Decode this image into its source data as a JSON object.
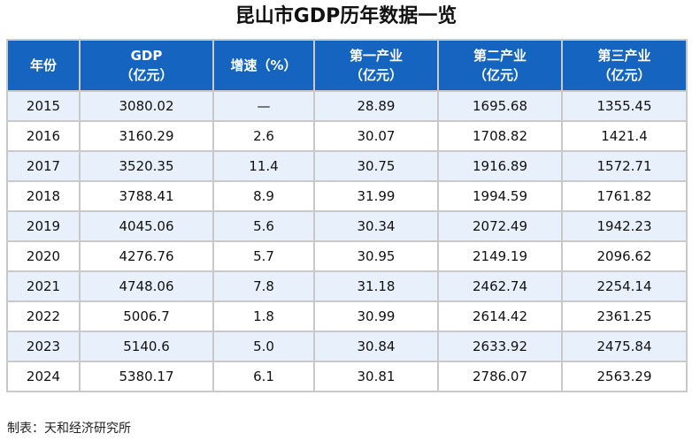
{
  "title": "昆山市GDP历年数据一览",
  "headers": [
    {
      "l1": "年份",
      "l2": ""
    },
    {
      "l1": "GDP",
      "l2": "（亿元）"
    },
    {
      "l1": "增速（%）",
      "l2": ""
    },
    {
      "l1": "第一产业",
      "l2": "（亿元）"
    },
    {
      "l1": "第二产业",
      "l2": "（亿元）"
    },
    {
      "l1": "第三产业",
      "l2": "（亿元）"
    }
  ],
  "rows": [
    [
      "2015",
      "3080.02",
      "—",
      "28.89",
      "1695.68",
      "1355.45"
    ],
    [
      "2016",
      "3160.29",
      "2.6",
      "30.07",
      "1708.82",
      "1421.4"
    ],
    [
      "2017",
      "3520.35",
      "11.4",
      "30.75",
      "1916.89",
      "1572.71"
    ],
    [
      "2018",
      "3788.41",
      "8.9",
      "31.99",
      "1994.59",
      "1761.82"
    ],
    [
      "2019",
      "4045.06",
      "5.6",
      "30.34",
      "2072.49",
      "1942.23"
    ],
    [
      "2020",
      "4276.76",
      "5.7",
      "30.95",
      "2149.19",
      "2096.62"
    ],
    [
      "2021",
      "4748.06",
      "7.8",
      "31.18",
      "2462.74",
      "2254.14"
    ],
    [
      "2022",
      "5006.7",
      "1.8",
      "30.99",
      "2614.42",
      "2361.25"
    ],
    [
      "2023",
      "5140.6",
      "5.0",
      "30.84",
      "2633.92",
      "2475.84"
    ],
    [
      "2024",
      "5380.17",
      "6.1",
      "30.81",
      "2786.07",
      "2563.29"
    ]
  ],
  "footer": "制表：天和经济研究所",
  "colors": {
    "header": "#1565c0",
    "stripe": "#e8f1fb"
  }
}
